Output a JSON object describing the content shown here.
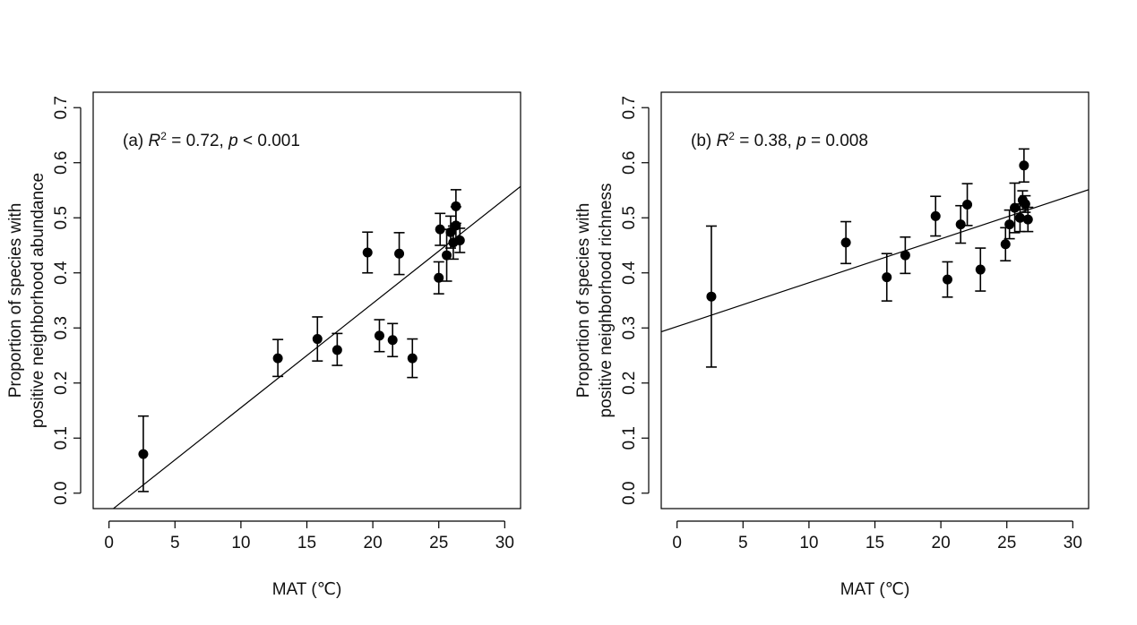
{
  "chart_data": [
    {
      "type": "scatter",
      "panel": "a",
      "annotation": {
        "prefix": "(a) ",
        "r_label": "R",
        "r_sup": "2",
        "r_value": " = 0.72, ",
        "p_label": "p",
        "p_value": " < 0.001"
      },
      "xlabel": "MAT (℃)",
      "ylabel_line1": "Proportion of species with",
      "ylabel_line2": "positive neighborhood abundance",
      "xlim": [
        -1.2,
        31.2
      ],
      "ylim": [
        -0.028,
        0.728
      ],
      "xticks": [
        0,
        5,
        10,
        15,
        20,
        25,
        30
      ],
      "xtick_labels": [
        "0",
        "5",
        "10",
        "15",
        "20",
        "25",
        "30"
      ],
      "yticks": [
        0.0,
        0.1,
        0.2,
        0.3,
        0.4,
        0.5,
        0.6,
        0.7
      ],
      "ytick_labels": [
        "0.0",
        "0.1",
        "0.2",
        "0.3",
        "0.4",
        "0.5",
        "0.6",
        "0.7"
      ],
      "fit_line": {
        "x1": -1.2,
        "y1": -0.057,
        "x2": 31.2,
        "y2": 0.557
      },
      "points": [
        {
          "x": 2.6,
          "y": 0.071,
          "lo": 0.003,
          "hi": 0.14
        },
        {
          "x": 12.8,
          "y": 0.245,
          "lo": 0.212,
          "hi": 0.279
        },
        {
          "x": 15.8,
          "y": 0.28,
          "lo": 0.24,
          "hi": 0.32
        },
        {
          "x": 17.3,
          "y": 0.26,
          "lo": 0.232,
          "hi": 0.29
        },
        {
          "x": 19.6,
          "y": 0.437,
          "lo": 0.4,
          "hi": 0.474
        },
        {
          "x": 20.5,
          "y": 0.286,
          "lo": 0.257,
          "hi": 0.315
        },
        {
          "x": 21.5,
          "y": 0.278,
          "lo": 0.248,
          "hi": 0.308
        },
        {
          "x": 22.0,
          "y": 0.435,
          "lo": 0.397,
          "hi": 0.473
        },
        {
          "x": 23.0,
          "y": 0.245,
          "lo": 0.21,
          "hi": 0.28
        },
        {
          "x": 25.0,
          "y": 0.391,
          "lo": 0.362,
          "hi": 0.42
        },
        {
          "x": 25.1,
          "y": 0.479,
          "lo": 0.45,
          "hi": 0.508
        },
        {
          "x": 25.6,
          "y": 0.432,
          "lo": 0.385,
          "hi": 0.479
        },
        {
          "x": 25.9,
          "y": 0.474,
          "lo": 0.445,
          "hi": 0.503
        },
        {
          "x": 26.1,
          "y": 0.455,
          "lo": 0.425,
          "hi": 0.485
        },
        {
          "x": 26.3,
          "y": 0.486,
          "lo": 0.452,
          "hi": 0.52
        },
        {
          "x": 26.3,
          "y": 0.521,
          "lo": 0.49,
          "hi": 0.551
        },
        {
          "x": 26.6,
          "y": 0.459,
          "lo": 0.437,
          "hi": 0.481
        }
      ]
    },
    {
      "type": "scatter",
      "panel": "b",
      "annotation": {
        "prefix": "(b) ",
        "r_label": "R",
        "r_sup": "2",
        "r_value": " = 0.38, ",
        "p_label": "p",
        "p_value": " = 0.008"
      },
      "xlabel": "MAT (℃)",
      "ylabel_line1": "Proportion of species with",
      "ylabel_line2": "positive neighborhood richness",
      "xlim": [
        -1.2,
        31.2
      ],
      "ylim": [
        -0.028,
        0.728
      ],
      "xticks": [
        0,
        5,
        10,
        15,
        20,
        25,
        30
      ],
      "xtick_labels": [
        "0",
        "5",
        "10",
        "15",
        "20",
        "25",
        "30"
      ],
      "yticks": [
        0.0,
        0.1,
        0.2,
        0.3,
        0.4,
        0.5,
        0.6,
        0.7
      ],
      "ytick_labels": [
        "0.0",
        "0.1",
        "0.2",
        "0.3",
        "0.4",
        "0.5",
        "0.6",
        "0.7"
      ],
      "fit_line": {
        "x1": -1.2,
        "y1": 0.293,
        "x2": 31.2,
        "y2": 0.551
      },
      "points": [
        {
          "x": 2.6,
          "y": 0.357,
          "lo": 0.229,
          "hi": 0.485
        },
        {
          "x": 12.8,
          "y": 0.455,
          "lo": 0.417,
          "hi": 0.493
        },
        {
          "x": 15.9,
          "y": 0.392,
          "lo": 0.349,
          "hi": 0.435
        },
        {
          "x": 17.3,
          "y": 0.432,
          "lo": 0.399,
          "hi": 0.465
        },
        {
          "x": 19.6,
          "y": 0.503,
          "lo": 0.467,
          "hi": 0.539
        },
        {
          "x": 20.5,
          "y": 0.388,
          "lo": 0.356,
          "hi": 0.42
        },
        {
          "x": 21.5,
          "y": 0.488,
          "lo": 0.454,
          "hi": 0.522
        },
        {
          "x": 22.0,
          "y": 0.524,
          "lo": 0.486,
          "hi": 0.562
        },
        {
          "x": 23.0,
          "y": 0.406,
          "lo": 0.367,
          "hi": 0.445
        },
        {
          "x": 24.9,
          "y": 0.452,
          "lo": 0.422,
          "hi": 0.482
        },
        {
          "x": 25.2,
          "y": 0.488,
          "lo": 0.462,
          "hi": 0.514
        },
        {
          "x": 25.6,
          "y": 0.518,
          "lo": 0.473,
          "hi": 0.563
        },
        {
          "x": 26.0,
          "y": 0.5,
          "lo": 0.475,
          "hi": 0.525
        },
        {
          "x": 26.2,
          "y": 0.532,
          "lo": 0.515,
          "hi": 0.549
        },
        {
          "x": 26.3,
          "y": 0.595,
          "lo": 0.565,
          "hi": 0.625
        },
        {
          "x": 26.4,
          "y": 0.525,
          "lo": 0.51,
          "hi": 0.54
        },
        {
          "x": 26.6,
          "y": 0.497,
          "lo": 0.475,
          "hi": 0.519
        }
      ]
    }
  ]
}
